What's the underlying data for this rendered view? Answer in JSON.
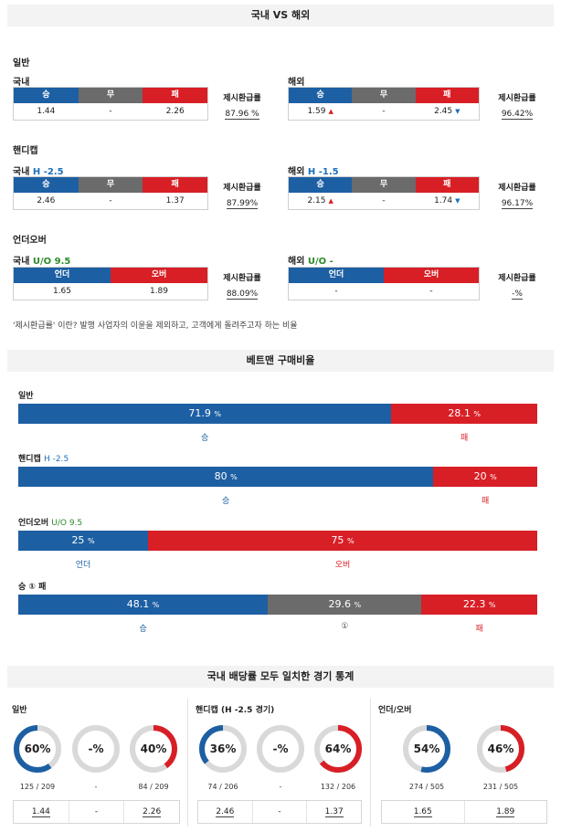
{
  "header1": "국내 VS 해외",
  "header2": "베트맨 구매비율",
  "header3": "국내 배당률 모두 일치한 경기 통계",
  "payout_label": "제시환급률",
  "note": "'제시환급률' 이란? 발행 사업자의 이윤을 제외하고, 고객에게 돌려주고자 하는 비율",
  "general": {
    "title": "일반",
    "domestic": {
      "label": "국내",
      "win": "승",
      "draw": "무",
      "lose": "패",
      "win_val": "1.44",
      "draw_val": "-",
      "lose_val": "2.26",
      "payout": "87.96 %"
    },
    "foreign": {
      "label": "해외",
      "win": "승",
      "draw": "무",
      "lose": "패",
      "win_val": "1.59",
      "draw_val": "-",
      "lose_val": "2.45",
      "payout": "96.42%"
    }
  },
  "handicap": {
    "title": "핸디캡",
    "domestic": {
      "label": "국내",
      "hl": "H -2.5",
      "win": "승",
      "draw": "무",
      "lose": "패",
      "win_val": "2.46",
      "draw_val": "-",
      "lose_val": "1.37",
      "payout": "87.99%"
    },
    "foreign": {
      "label": "해외",
      "hl": "H -1.5",
      "win": "승",
      "draw": "무",
      "lose": "패",
      "win_val": "2.15",
      "draw_val": "-",
      "lose_val": "1.74",
      "payout": "96.17%"
    }
  },
  "overunder": {
    "title": "언더오버",
    "domestic": {
      "label": "국내",
      "hl": "U/O 9.5",
      "under": "언더",
      "over": "오버",
      "under_val": "1.65",
      "over_val": "1.89",
      "payout": "88.09%"
    },
    "foreign": {
      "label": "해외",
      "hl": "U/O -",
      "under": "언더",
      "over": "오버",
      "under_val": "-",
      "over_val": "-",
      "payout": "-%"
    }
  },
  "purchase": {
    "general": {
      "title": "일반",
      "win_pct": 71.9,
      "lose_pct": 28.1,
      "win_text": "71.9",
      "lose_text": "28.1",
      "win": "승",
      "lose": "패"
    },
    "handicap": {
      "title": "핸디캡",
      "hl": "H -2.5",
      "win_pct": 80,
      "lose_pct": 20,
      "win_text": "80",
      "lose_text": "20",
      "win": "승",
      "lose": "패"
    },
    "overunder": {
      "title": "언더오버",
      "hl": "U/O 9.5",
      "under_pct": 25,
      "over_pct": 75,
      "under_text": "25",
      "over_text": "75",
      "under": "언더",
      "over": "오버"
    },
    "wdl": {
      "title": "승 ① 패",
      "win_pct": 48.1,
      "draw_pct": 29.6,
      "lose_pct": 22.3,
      "win_text": "48.1",
      "draw_text": "29.6",
      "lose_text": "22.3",
      "win": "승",
      "draw": "①",
      "lose": "패"
    },
    "pct": "%"
  },
  "stats": {
    "general": {
      "title": "일반",
      "win_pct": 60,
      "draw_pct": null,
      "lose_pct": 40,
      "win_label": "60%",
      "draw_label": "-%",
      "lose_label": "40%",
      "win_cnt": "125 / 209",
      "draw_cnt": "-",
      "lose_cnt": "84 / 209",
      "odds": [
        "1.44",
        "-",
        "2.26"
      ]
    },
    "handicap": {
      "title": "핸디캡 (H -2.5 경기)",
      "win_pct": 36,
      "draw_pct": null,
      "lose_pct": 64,
      "win_label": "36%",
      "draw_label": "-%",
      "lose_label": "64%",
      "win_cnt": "74 / 206",
      "draw_cnt": "-",
      "lose_cnt": "132 / 206",
      "odds": [
        "2.46",
        "-",
        "1.37"
      ]
    },
    "overunder": {
      "title": "언더/오버",
      "under_pct": 54,
      "over_pct": 46,
      "under_label": "54%",
      "over_label": "46%",
      "under_cnt": "274 / 505",
      "over_cnt": "231 / 505",
      "odds": [
        "1.65",
        "1.89"
      ]
    }
  },
  "colors": {
    "blue": "#1d5fa3",
    "red": "#d81f26",
    "gray": "#6b6b6b",
    "ring_gray": "#d9d9d9"
  }
}
